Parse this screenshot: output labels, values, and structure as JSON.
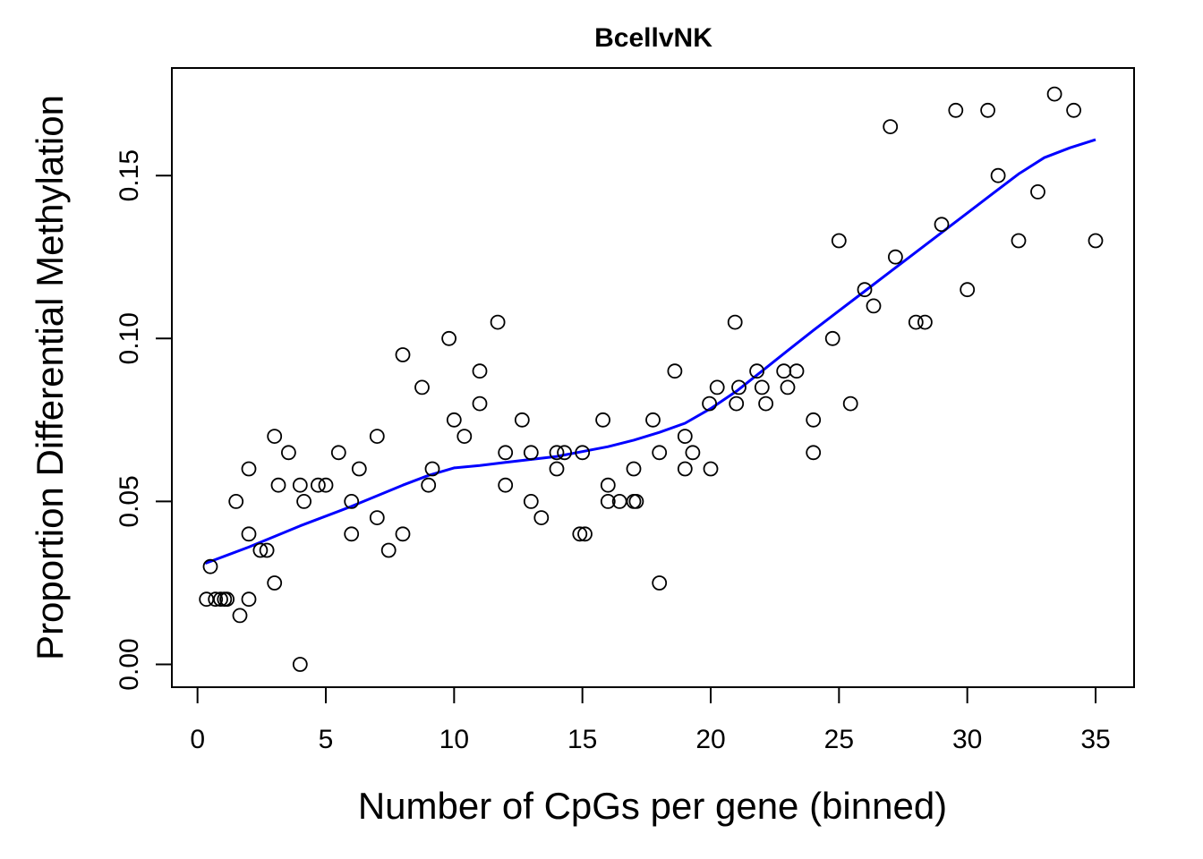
{
  "chart_data": {
    "type": "scatter",
    "title": "BcellvNK",
    "xlabel": "Number of CpGs per gene (binned)",
    "ylabel": "Proportion Differential Methylation",
    "xlim": [
      -1,
      36.5
    ],
    "ylim": [
      -0.007,
      0.183
    ],
    "x_ticks": [
      0,
      5,
      10,
      15,
      20,
      25,
      30,
      35
    ],
    "x_tick_labels": [
      "0",
      "5",
      "10",
      "15",
      "20",
      "25",
      "30",
      "35"
    ],
    "y_ticks": [
      0.0,
      0.05,
      0.1,
      0.15
    ],
    "y_tick_labels": [
      "0.00",
      "0.05",
      "0.10",
      "0.15"
    ],
    "grid": false,
    "legend": "none",
    "colors": {
      "points": "#000000",
      "fit_line": "#0000ff",
      "frame": "#000000",
      "background": "#ffffff"
    },
    "series": [
      {
        "type": "scatter",
        "marker": "open-circle",
        "points": [
          [
            0.35,
            0.02
          ],
          [
            0.5,
            0.03
          ],
          [
            0.7,
            0.02
          ],
          [
            0.9,
            0.02
          ],
          [
            1.05,
            0.02
          ],
          [
            1.15,
            0.02
          ],
          [
            1.5,
            0.05
          ],
          [
            1.65,
            0.015
          ],
          [
            2.0,
            0.06
          ],
          [
            2.0,
            0.04
          ],
          [
            2.0,
            0.02
          ],
          [
            2.45,
            0.035
          ],
          [
            2.7,
            0.035
          ],
          [
            3.0,
            0.07
          ],
          [
            3.0,
            0.025
          ],
          [
            3.15,
            0.055
          ],
          [
            3.55,
            0.065
          ],
          [
            4.0,
            0.055
          ],
          [
            4.0,
            0.0
          ],
          [
            4.15,
            0.05
          ],
          [
            4.7,
            0.055
          ],
          [
            5.0,
            0.055
          ],
          [
            5.5,
            0.065
          ],
          [
            6.0,
            0.05
          ],
          [
            6.0,
            0.04
          ],
          [
            6.3,
            0.06
          ],
          [
            7.0,
            0.07
          ],
          [
            7.0,
            0.045
          ],
          [
            7.45,
            0.035
          ],
          [
            8.0,
            0.095
          ],
          [
            8.0,
            0.04
          ],
          [
            8.75,
            0.085
          ],
          [
            9.0,
            0.055
          ],
          [
            9.15,
            0.06
          ],
          [
            9.8,
            0.1
          ],
          [
            10.0,
            0.075
          ],
          [
            10.4,
            0.07
          ],
          [
            11.0,
            0.09
          ],
          [
            11.0,
            0.08
          ],
          [
            11.7,
            0.105
          ],
          [
            12.0,
            0.065
          ],
          [
            12.0,
            0.055
          ],
          [
            12.65,
            0.075
          ],
          [
            13.0,
            0.065
          ],
          [
            13.0,
            0.05
          ],
          [
            13.4,
            0.045
          ],
          [
            14.0,
            0.065
          ],
          [
            14.0,
            0.06
          ],
          [
            14.3,
            0.065
          ],
          [
            14.9,
            0.04
          ],
          [
            15.0,
            0.065
          ],
          [
            15.1,
            0.04
          ],
          [
            15.8,
            0.075
          ],
          [
            16.0,
            0.055
          ],
          [
            16.0,
            0.05
          ],
          [
            16.45,
            0.05
          ],
          [
            17.0,
            0.06
          ],
          [
            17.0,
            0.05
          ],
          [
            17.1,
            0.05
          ],
          [
            17.75,
            0.075
          ],
          [
            18.0,
            0.065
          ],
          [
            18.0,
            0.025
          ],
          [
            18.6,
            0.09
          ],
          [
            19.0,
            0.07
          ],
          [
            19.0,
            0.06
          ],
          [
            19.3,
            0.065
          ],
          [
            19.95,
            0.08
          ],
          [
            20.0,
            0.06
          ],
          [
            20.25,
            0.085
          ],
          [
            20.95,
            0.105
          ],
          [
            21.0,
            0.08
          ],
          [
            21.1,
            0.085
          ],
          [
            21.8,
            0.09
          ],
          [
            22.0,
            0.085
          ],
          [
            22.15,
            0.08
          ],
          [
            22.85,
            0.09
          ],
          [
            23.0,
            0.085
          ],
          [
            23.35,
            0.09
          ],
          [
            24.0,
            0.075
          ],
          [
            24.0,
            0.065
          ],
          [
            24.75,
            0.1
          ],
          [
            25.0,
            0.13
          ],
          [
            25.45,
            0.08
          ],
          [
            26.0,
            0.115
          ],
          [
            26.35,
            0.11
          ],
          [
            27.0,
            0.165
          ],
          [
            27.2,
            0.125
          ],
          [
            28.0,
            0.105
          ],
          [
            28.35,
            0.105
          ],
          [
            29.0,
            0.135
          ],
          [
            29.55,
            0.17
          ],
          [
            30.0,
            0.115
          ],
          [
            30.8,
            0.17
          ],
          [
            31.2,
            0.15
          ],
          [
            32.0,
            0.13
          ],
          [
            32.75,
            0.145
          ],
          [
            33.4,
            0.175
          ],
          [
            34.15,
            0.17
          ],
          [
            35.0,
            0.13
          ]
        ]
      },
      {
        "type": "line",
        "smoother": "lowess",
        "points": [
          [
            0.3,
            0.031
          ],
          [
            2,
            0.036
          ],
          [
            4,
            0.0425
          ],
          [
            6,
            0.0485
          ],
          [
            8,
            0.055
          ],
          [
            9,
            0.058
          ],
          [
            10,
            0.0603
          ],
          [
            11,
            0.061
          ],
          [
            12,
            0.062
          ],
          [
            14,
            0.0638
          ],
          [
            16,
            0.0668
          ],
          [
            17,
            0.0688
          ],
          [
            18,
            0.0712
          ],
          [
            19,
            0.074
          ],
          [
            20,
            0.0785
          ],
          [
            21,
            0.0838
          ],
          [
            22,
            0.09
          ],
          [
            23,
            0.0963
          ],
          [
            24,
            0.1025
          ],
          [
            25,
            0.1085
          ],
          [
            26,
            0.1145
          ],
          [
            27,
            0.1205
          ],
          [
            28,
            0.1265
          ],
          [
            29,
            0.1325
          ],
          [
            30,
            0.1385
          ],
          [
            31,
            0.1445
          ],
          [
            32,
            0.1505
          ],
          [
            33,
            0.1555
          ],
          [
            34,
            0.1585
          ],
          [
            35,
            0.161
          ]
        ]
      }
    ]
  }
}
